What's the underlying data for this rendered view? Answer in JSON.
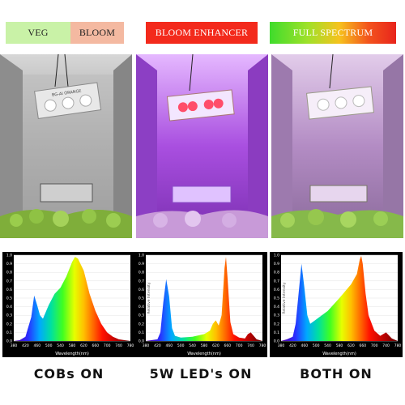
{
  "badges": [
    {
      "label": "VEG",
      "bg": "#c9f2a7",
      "color": "#222222"
    },
    {
      "label": "BLOOM",
      "bg": "#f4b9a1",
      "color": "#222222"
    },
    {
      "label": "BLOOM ENHANCER",
      "bg": "#f32a1c",
      "color": "#ffffff"
    },
    {
      "label": "FULL SPECTRUM",
      "bg": "gradient",
      "color": "#ffffff"
    }
  ],
  "photos": [
    {
      "name": "cobs-on-tent",
      "light_label": "BG-AI ORANGE",
      "tint": "#bfbfbf"
    },
    {
      "name": "5w-leds-on-tent",
      "light_label": "",
      "tint": "#b06ae0"
    },
    {
      "name": "both-on-tent",
      "light_label": "",
      "tint": "#c6a4d4"
    }
  ],
  "captions": [
    "COBs ON",
    "5W LED's ON",
    "BOTH ON"
  ],
  "chart_data": [
    {
      "type": "area",
      "xlabel": "Wavelength(nm)",
      "ylabel": "",
      "xlim": [
        380,
        780
      ],
      "ylim": [
        0,
        1.0
      ],
      "xticks": [
        "380",
        "420",
        "460",
        "500",
        "540",
        "580",
        "620",
        "660",
        "700",
        "740",
        "780"
      ],
      "yticks": [
        "0.0",
        "0.1",
        "0.2",
        "0.3",
        "0.4",
        "0.5",
        "0.6",
        "0.7",
        "0.8",
        "0.9",
        "1.0"
      ],
      "x": [
        380,
        400,
        420,
        440,
        450,
        460,
        470,
        480,
        500,
        520,
        540,
        560,
        580,
        590,
        600,
        620,
        640,
        660,
        680,
        700,
        720,
        740,
        760,
        780
      ],
      "y": [
        0.0,
        0.01,
        0.05,
        0.28,
        0.53,
        0.42,
        0.3,
        0.26,
        0.42,
        0.55,
        0.62,
        0.75,
        0.92,
        0.98,
        0.96,
        0.82,
        0.55,
        0.35,
        0.2,
        0.1,
        0.05,
        0.02,
        0.01,
        0.0
      ]
    },
    {
      "type": "area",
      "xlabel": "Wavelength(nm)",
      "ylabel": "Relative Intensity",
      "xlim": [
        380,
        780
      ],
      "ylim": [
        0,
        1.0
      ],
      "xticks": [
        "380",
        "420",
        "460",
        "500",
        "540",
        "580",
        "620",
        "660",
        "700",
        "740",
        "780"
      ],
      "yticks": [
        "0.0",
        "0.1",
        "0.2",
        "0.3",
        "0.4",
        "0.5",
        "0.6",
        "0.7",
        "0.8",
        "0.9",
        "1.0"
      ],
      "x": [
        380,
        420,
        430,
        440,
        450,
        460,
        470,
        480,
        500,
        540,
        580,
        600,
        610,
        620,
        630,
        640,
        650,
        655,
        660,
        670,
        680,
        700,
        720,
        730,
        740,
        760,
        780
      ],
      "y": [
        0.0,
        0.02,
        0.1,
        0.45,
        0.72,
        0.52,
        0.15,
        0.06,
        0.04,
        0.05,
        0.08,
        0.12,
        0.2,
        0.24,
        0.18,
        0.3,
        0.85,
        0.98,
        0.75,
        0.22,
        0.08,
        0.04,
        0.03,
        0.08,
        0.1,
        0.02,
        0.0
      ]
    },
    {
      "type": "area",
      "xlabel": "Wavelength(nm)",
      "ylabel": "Relative Intensity",
      "xlim": [
        380,
        780
      ],
      "ylim": [
        0,
        1.0
      ],
      "xticks": [
        "380",
        "420",
        "460",
        "500",
        "540",
        "580",
        "620",
        "660",
        "700",
        "740",
        "780"
      ],
      "yticks": [
        "0.0",
        "0.1",
        "0.2",
        "0.3",
        "0.4",
        "0.5",
        "0.6",
        "0.7",
        "0.8",
        "0.9",
        "1.0"
      ],
      "x": [
        380,
        400,
        420,
        430,
        440,
        450,
        460,
        470,
        480,
        500,
        540,
        580,
        600,
        620,
        640,
        650,
        655,
        660,
        670,
        680,
        700,
        720,
        740,
        760,
        780
      ],
      "y": [
        0.0,
        0.02,
        0.05,
        0.2,
        0.55,
        0.9,
        0.62,
        0.3,
        0.2,
        0.25,
        0.35,
        0.5,
        0.58,
        0.66,
        0.78,
        0.95,
        0.99,
        0.9,
        0.55,
        0.3,
        0.12,
        0.06,
        0.1,
        0.03,
        0.0
      ]
    }
  ]
}
